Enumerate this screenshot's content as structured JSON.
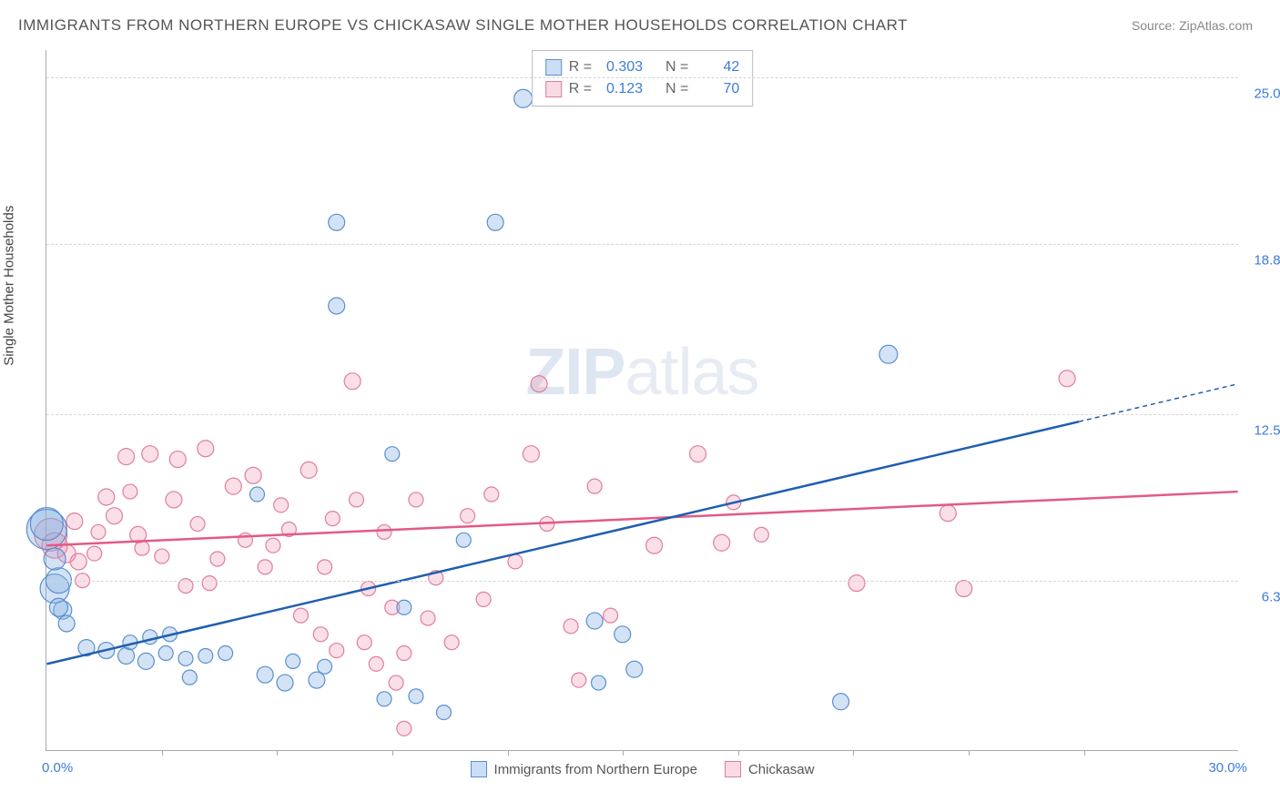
{
  "title": "IMMIGRANTS FROM NORTHERN EUROPE VS CHICKASAW SINGLE MOTHER HOUSEHOLDS CORRELATION CHART",
  "source_label": "Source:",
  "source_name": "ZipAtlas.com",
  "ylabel": "Single Mother Households",
  "watermark_bold": "ZIP",
  "watermark_rest": "atlas",
  "chart": {
    "type": "scatter",
    "xlim": [
      0,
      30
    ],
    "ylim": [
      0,
      26
    ],
    "x_min_label": "0.0%",
    "x_max_label": "30.0%",
    "y_ticks": [
      6.3,
      12.5,
      18.8,
      25.0
    ],
    "y_tick_labels": [
      "6.3%",
      "12.5%",
      "18.8%",
      "25.0%"
    ],
    "x_tick_positions": [
      2.9,
      5.8,
      8.7,
      11.6,
      14.5,
      17.4,
      20.3,
      23.2,
      26.1
    ],
    "grid_color": "#d5d5d5",
    "background_color": "#ffffff",
    "axis_color": "#aaaaaa",
    "tick_label_color": "#3b7dd8",
    "series": {
      "blue": {
        "label": "Immigrants from Northern Europe",
        "fill_color": "rgba(130,175,225,0.35)",
        "stroke_color": "#5a8fcf",
        "line_color": "#1f5fb0",
        "line_width": 2.5,
        "R": "0.303",
        "N": "42",
        "trend": {
          "x1": 0,
          "y1": 3.2,
          "x2": 26,
          "y2": 12.2,
          "dash_from_x": 26,
          "dash_to_x": 30,
          "dash_to_y": 13.6
        },
        "points": [
          {
            "x": 0.0,
            "y": 8.2,
            "r": 22
          },
          {
            "x": 0.0,
            "y": 8.4,
            "r": 18
          },
          {
            "x": 0.2,
            "y": 6.0,
            "r": 16
          },
          {
            "x": 0.3,
            "y": 6.3,
            "r": 14
          },
          {
            "x": 0.2,
            "y": 7.1,
            "r": 12
          },
          {
            "x": 0.4,
            "y": 5.2,
            "r": 10
          },
          {
            "x": 1.0,
            "y": 3.8,
            "r": 9
          },
          {
            "x": 1.5,
            "y": 3.7,
            "r": 9
          },
          {
            "x": 2.0,
            "y": 3.5,
            "r": 9
          },
          {
            "x": 2.1,
            "y": 4.0,
            "r": 8
          },
          {
            "x": 2.5,
            "y": 3.3,
            "r": 9
          },
          {
            "x": 2.6,
            "y": 4.2,
            "r": 8
          },
          {
            "x": 3.0,
            "y": 3.6,
            "r": 8
          },
          {
            "x": 3.1,
            "y": 4.3,
            "r": 8
          },
          {
            "x": 3.5,
            "y": 3.4,
            "r": 8
          },
          {
            "x": 3.6,
            "y": 2.7,
            "r": 8
          },
          {
            "x": 4.0,
            "y": 3.5,
            "r": 8
          },
          {
            "x": 4.5,
            "y": 3.6,
            "r": 8
          },
          {
            "x": 5.3,
            "y": 9.5,
            "r": 8
          },
          {
            "x": 5.5,
            "y": 2.8,
            "r": 9
          },
          {
            "x": 6.0,
            "y": 2.5,
            "r": 9
          },
          {
            "x": 6.2,
            "y": 3.3,
            "r": 8
          },
          {
            "x": 6.8,
            "y": 2.6,
            "r": 9
          },
          {
            "x": 7.0,
            "y": 3.1,
            "r": 8
          },
          {
            "x": 7.3,
            "y": 19.6,
            "r": 9
          },
          {
            "x": 7.3,
            "y": 16.5,
            "r": 9
          },
          {
            "x": 8.5,
            "y": 1.9,
            "r": 8
          },
          {
            "x": 8.7,
            "y": 11.0,
            "r": 8
          },
          {
            "x": 9.0,
            "y": 5.3,
            "r": 8
          },
          {
            "x": 9.3,
            "y": 2.0,
            "r": 8
          },
          {
            "x": 10.0,
            "y": 1.4,
            "r": 8
          },
          {
            "x": 10.5,
            "y": 7.8,
            "r": 8
          },
          {
            "x": 11.3,
            "y": 19.6,
            "r": 9
          },
          {
            "x": 12.0,
            "y": 24.2,
            "r": 10
          },
          {
            "x": 13.8,
            "y": 4.8,
            "r": 9
          },
          {
            "x": 13.9,
            "y": 2.5,
            "r": 8
          },
          {
            "x": 14.5,
            "y": 4.3,
            "r": 9
          },
          {
            "x": 14.8,
            "y": 3.0,
            "r": 9
          },
          {
            "x": 20.0,
            "y": 1.8,
            "r": 9
          },
          {
            "x": 21.2,
            "y": 14.7,
            "r": 10
          },
          {
            "x": 0.3,
            "y": 5.3,
            "r": 10
          },
          {
            "x": 0.5,
            "y": 4.7,
            "r": 9
          }
        ]
      },
      "pink": {
        "label": "Chickasaw",
        "fill_color": "rgba(240,150,175,0.3)",
        "stroke_color": "#e07da0",
        "line_color": "#e35a84",
        "line_width": 2.5,
        "R": "0.123",
        "N": "70",
        "trend": {
          "x1": 0,
          "y1": 7.6,
          "x2": 30,
          "y2": 9.6
        },
        "points": [
          {
            "x": 0.1,
            "y": 8.0,
            "r": 18
          },
          {
            "x": 0.2,
            "y": 7.6,
            "r": 14
          },
          {
            "x": 0.5,
            "y": 7.3,
            "r": 10
          },
          {
            "x": 0.8,
            "y": 7.0,
            "r": 9
          },
          {
            "x": 0.7,
            "y": 8.5,
            "r": 9
          },
          {
            "x": 1.2,
            "y": 7.3,
            "r": 8
          },
          {
            "x": 1.5,
            "y": 9.4,
            "r": 9
          },
          {
            "x": 1.7,
            "y": 8.7,
            "r": 9
          },
          {
            "x": 2.0,
            "y": 10.9,
            "r": 9
          },
          {
            "x": 2.1,
            "y": 9.6,
            "r": 8
          },
          {
            "x": 2.3,
            "y": 8.0,
            "r": 9
          },
          {
            "x": 2.6,
            "y": 11.0,
            "r": 9
          },
          {
            "x": 2.9,
            "y": 7.2,
            "r": 8
          },
          {
            "x": 3.2,
            "y": 9.3,
            "r": 9
          },
          {
            "x": 3.3,
            "y": 10.8,
            "r": 9
          },
          {
            "x": 3.5,
            "y": 6.1,
            "r": 8
          },
          {
            "x": 3.8,
            "y": 8.4,
            "r": 8
          },
          {
            "x": 4.0,
            "y": 11.2,
            "r": 9
          },
          {
            "x": 4.3,
            "y": 7.1,
            "r": 8
          },
          {
            "x": 4.7,
            "y": 9.8,
            "r": 9
          },
          {
            "x": 5.0,
            "y": 7.8,
            "r": 8
          },
          {
            "x": 5.2,
            "y": 10.2,
            "r": 9
          },
          {
            "x": 5.5,
            "y": 6.8,
            "r": 8
          },
          {
            "x": 5.9,
            "y": 9.1,
            "r": 8
          },
          {
            "x": 6.1,
            "y": 8.2,
            "r": 8
          },
          {
            "x": 6.4,
            "y": 5.0,
            "r": 8
          },
          {
            "x": 6.6,
            "y": 10.4,
            "r": 9
          },
          {
            "x": 6.9,
            "y": 4.3,
            "r": 8
          },
          {
            "x": 7.2,
            "y": 8.6,
            "r": 8
          },
          {
            "x": 7.3,
            "y": 3.7,
            "r": 8
          },
          {
            "x": 7.7,
            "y": 13.7,
            "r": 9
          },
          {
            "x": 7.8,
            "y": 9.3,
            "r": 8
          },
          {
            "x": 8.0,
            "y": 4.0,
            "r": 8
          },
          {
            "x": 8.1,
            "y": 6.0,
            "r": 8
          },
          {
            "x": 8.3,
            "y": 3.2,
            "r": 8
          },
          {
            "x": 8.5,
            "y": 8.1,
            "r": 8
          },
          {
            "x": 8.7,
            "y": 5.3,
            "r": 8
          },
          {
            "x": 8.8,
            "y": 2.5,
            "r": 8
          },
          {
            "x": 9.0,
            "y": 3.6,
            "r": 8
          },
          {
            "x": 9.0,
            "y": 0.8,
            "r": 8
          },
          {
            "x": 9.3,
            "y": 9.3,
            "r": 8
          },
          {
            "x": 9.6,
            "y": 4.9,
            "r": 8
          },
          {
            "x": 9.8,
            "y": 6.4,
            "r": 8
          },
          {
            "x": 10.2,
            "y": 4.0,
            "r": 8
          },
          {
            "x": 10.6,
            "y": 8.7,
            "r": 8
          },
          {
            "x": 11.0,
            "y": 5.6,
            "r": 8
          },
          {
            "x": 11.2,
            "y": 9.5,
            "r": 8
          },
          {
            "x": 11.8,
            "y": 7.0,
            "r": 8
          },
          {
            "x": 12.2,
            "y": 11.0,
            "r": 9
          },
          {
            "x": 12.4,
            "y": 13.6,
            "r": 9
          },
          {
            "x": 12.6,
            "y": 8.4,
            "r": 8
          },
          {
            "x": 13.2,
            "y": 4.6,
            "r": 8
          },
          {
            "x": 13.4,
            "y": 2.6,
            "r": 8
          },
          {
            "x": 13.8,
            "y": 9.8,
            "r": 8
          },
          {
            "x": 14.2,
            "y": 5.0,
            "r": 8
          },
          {
            "x": 15.3,
            "y": 7.6,
            "r": 9
          },
          {
            "x": 16.4,
            "y": 11.0,
            "r": 9
          },
          {
            "x": 17.0,
            "y": 7.7,
            "r": 9
          },
          {
            "x": 17.3,
            "y": 9.2,
            "r": 8
          },
          {
            "x": 18.0,
            "y": 8.0,
            "r": 8
          },
          {
            "x": 20.4,
            "y": 6.2,
            "r": 9
          },
          {
            "x": 22.7,
            "y": 8.8,
            "r": 9
          },
          {
            "x": 23.1,
            "y": 6.0,
            "r": 9
          },
          {
            "x": 25.7,
            "y": 13.8,
            "r": 9
          },
          {
            "x": 0.9,
            "y": 6.3,
            "r": 8
          },
          {
            "x": 1.3,
            "y": 8.1,
            "r": 8
          },
          {
            "x": 4.1,
            "y": 6.2,
            "r": 8
          },
          {
            "x": 5.7,
            "y": 7.6,
            "r": 8
          },
          {
            "x": 7.0,
            "y": 6.8,
            "r": 8
          },
          {
            "x": 2.4,
            "y": 7.5,
            "r": 8
          }
        ]
      }
    }
  },
  "legend": {
    "items": [
      {
        "swatch": "blue",
        "label": "Immigrants from Northern Europe"
      },
      {
        "swatch": "pink",
        "label": "Chickasaw"
      }
    ]
  }
}
